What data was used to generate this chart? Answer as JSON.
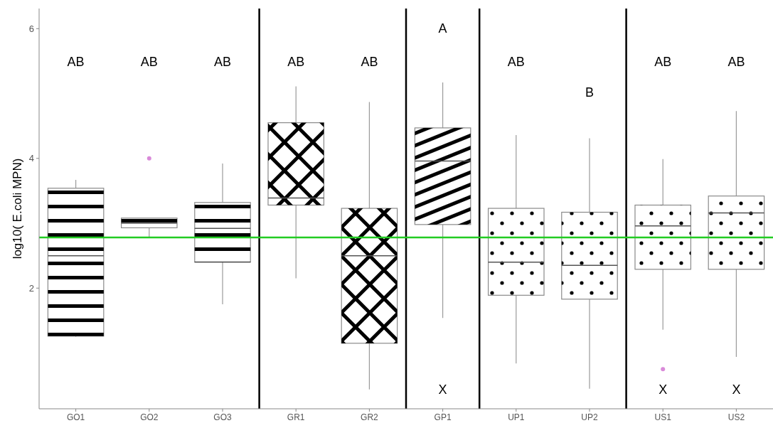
{
  "chart_data": {
    "type": "box",
    "ylabel": "log10( E.coli MPN)",
    "categories": [
      "GO1",
      "GO2",
      "GO3",
      "GR1",
      "GR2",
      "GP1",
      "UP1",
      "UP2",
      "US1",
      "US2"
    ],
    "color": "#ffffff",
    "boxes": [
      {
        "low": 1.25,
        "q1": 1.26,
        "median": 2.5,
        "q3": 3.54,
        "high": 3.67
      },
      {
        "low": 2.78,
        "q1": 2.93,
        "median": 3.0,
        "q3": 3.08,
        "high": 3.08,
        "outliers": [
          4.0
        ]
      },
      {
        "low": 1.75,
        "q1": 2.4,
        "median": 2.92,
        "q3": 3.32,
        "high": 3.92
      },
      {
        "low": 2.15,
        "q1": 3.28,
        "median": 3.39,
        "q3": 4.55,
        "high": 5.11
      },
      {
        "low": 0.44,
        "q1": 1.15,
        "median": 2.5,
        "q3": 3.23,
        "high": 4.87
      },
      {
        "low": 1.54,
        "q1": 2.98,
        "median": 3.96,
        "q3": 4.47,
        "high": 5.17
      },
      {
        "low": 0.84,
        "q1": 1.89,
        "median": 2.4,
        "q3": 3.23,
        "high": 4.36
      },
      {
        "low": 0.45,
        "q1": 1.83,
        "median": 2.35,
        "q3": 3.17,
        "high": 4.31
      },
      {
        "low": 1.36,
        "q1": 2.29,
        "median": 2.96,
        "q3": 3.28,
        "high": 3.99,
        "outliers": [
          0.75
        ]
      },
      {
        "low": 0.94,
        "q1": 2.29,
        "median": 3.16,
        "q3": 3.42,
        "high": 4.73
      }
    ],
    "ylim": [
      0.14,
      6.31
    ],
    "yticks": [
      2,
      4,
      6
    ],
    "grid": false,
    "ref_lines": [
      {
        "axis": "y",
        "value": 2.78,
        "color": "#22cc22"
      }
    ],
    "annotations": [
      "AB",
      "AB",
      "AB",
      "AB",
      "AB",
      "A",
      "X",
      "AB",
      "B",
      "AB",
      "X",
      "AB",
      "X"
    ]
  }
}
